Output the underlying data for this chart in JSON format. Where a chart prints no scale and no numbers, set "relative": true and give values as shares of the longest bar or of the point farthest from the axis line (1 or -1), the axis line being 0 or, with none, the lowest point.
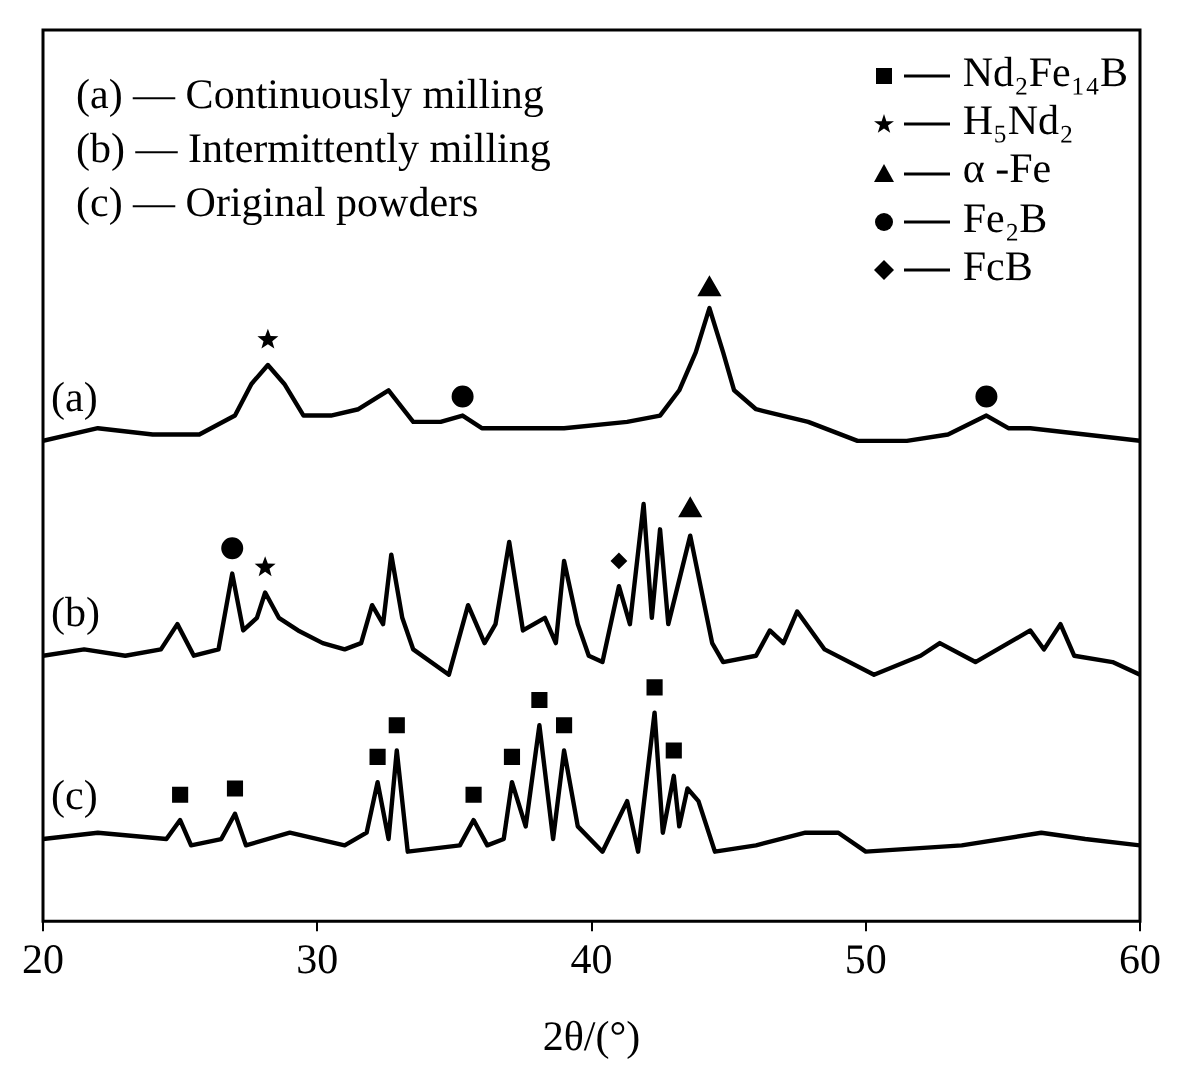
{
  "chart_data": {
    "type": "line",
    "xlabel": "2θ/(°)",
    "relative": true,
    "legend": "top right",
    "xlim": [
      20,
      60
    ],
    "xticks": [
      20,
      30,
      40,
      50,
      60
    ],
    "annotations": [
      "(a) — Continuously milling",
      "(b) — Intermittently milling",
      "(c) — Original powders"
    ],
    "series": [
      {
        "name": "(a)",
        "color": "#000000",
        "marker": "none",
        "x": [
          20,
          22,
          24,
          25.7,
          27,
          27.6,
          28.2,
          28.8,
          29.5,
          30.5,
          31.5,
          32.6,
          33.5,
          34.5,
          35.3,
          36,
          37,
          39,
          41.3,
          42.5,
          43.2,
          43.8,
          44.3,
          44.8,
          45.2,
          46,
          47.9,
          49.7,
          51.5,
          53,
          54.4,
          55.2,
          56,
          58,
          60
        ],
        "values": [
          0.76,
          0.78,
          0.77,
          0.77,
          0.8,
          0.85,
          0.88,
          0.85,
          0.8,
          0.8,
          0.81,
          0.84,
          0.79,
          0.79,
          0.8,
          0.78,
          0.78,
          0.78,
          0.79,
          0.8,
          0.84,
          0.9,
          0.97,
          0.9,
          0.84,
          0.81,
          0.79,
          0.76,
          0.76,
          0.77,
          0.8,
          0.78,
          0.78,
          0.77,
          0.76
        ]
      },
      {
        "name": "(b)",
        "color": "#000000",
        "marker": "none",
        "x": [
          20,
          21.5,
          23,
          24.3,
          24.9,
          25.5,
          26.4,
          26.9,
          27.3,
          27.8,
          28.1,
          28.6,
          29.3,
          30.2,
          31,
          31.6,
          32,
          32.4,
          32.7,
          33.1,
          33.5,
          34.8,
          35.5,
          36.1,
          36.5,
          37,
          37.5,
          38.3,
          38.7,
          39,
          39.5,
          39.9,
          40.4,
          41,
          41.4,
          41.9,
          42.2,
          42.5,
          42.8,
          43.6,
          44.4,
          44.8,
          46,
          46.5,
          47,
          47.5,
          48.5,
          50.3,
          52,
          52.7,
          54,
          56,
          56.5,
          57.1,
          57.6,
          59,
          60
        ],
        "values": [
          0.42,
          0.43,
          0.42,
          0.43,
          0.47,
          0.42,
          0.43,
          0.55,
          0.46,
          0.48,
          0.52,
          0.48,
          0.46,
          0.44,
          0.43,
          0.44,
          0.5,
          0.47,
          0.58,
          0.48,
          0.43,
          0.39,
          0.5,
          0.44,
          0.47,
          0.6,
          0.46,
          0.48,
          0.44,
          0.57,
          0.47,
          0.42,
          0.41,
          0.53,
          0.47,
          0.66,
          0.48,
          0.62,
          0.47,
          0.61,
          0.44,
          0.41,
          0.42,
          0.46,
          0.44,
          0.49,
          0.43,
          0.39,
          0.42,
          0.44,
          0.41,
          0.46,
          0.43,
          0.47,
          0.42,
          0.41,
          0.39
        ]
      },
      {
        "name": "(c)",
        "color": "#000000",
        "marker": "none",
        "x": [
          20,
          22,
          24.5,
          25,
          25.4,
          26.5,
          27,
          27.4,
          29,
          31,
          31.8,
          32.2,
          32.6,
          32.9,
          33.3,
          35.2,
          35.7,
          36.2,
          36.8,
          37.1,
          37.6,
          38.1,
          38.6,
          39,
          39.5,
          40.4,
          41.3,
          41.7,
          42.3,
          42.6,
          43,
          43.2,
          43.5,
          43.9,
          44.5,
          46,
          47.8,
          49,
          50,
          53.5,
          56.4,
          58,
          60
        ],
        "values": [
          0.13,
          0.14,
          0.13,
          0.16,
          0.12,
          0.13,
          0.17,
          0.12,
          0.14,
          0.12,
          0.14,
          0.22,
          0.13,
          0.27,
          0.11,
          0.12,
          0.16,
          0.12,
          0.13,
          0.22,
          0.15,
          0.31,
          0.13,
          0.27,
          0.15,
          0.11,
          0.19,
          0.11,
          0.33,
          0.14,
          0.23,
          0.15,
          0.21,
          0.19,
          0.11,
          0.12,
          0.14,
          0.14,
          0.11,
          0.12,
          0.14,
          0.13,
          0.12
        ]
      },
      {
        "name": "Nd₂Fe₁₄B",
        "type": "scatter",
        "color": "#000000",
        "marker": "square",
        "x": [
          25,
          27,
          32.2,
          32.9,
          35.7,
          37.1,
          38.1,
          39,
          42.3,
          43
        ],
        "values": [
          0.2,
          0.21,
          0.26,
          0.31,
          0.2,
          0.26,
          0.35,
          0.31,
          0.37,
          0.27
        ]
      },
      {
        "name": "H₅Nd₂",
        "type": "scatter",
        "color": "#000000",
        "marker": "star",
        "x": [
          28.2,
          28.1
        ],
        "values": [
          0.92,
          0.56
        ]
      },
      {
        "name": "α -Fe",
        "type": "scatter",
        "color": "#000000",
        "marker": "triangle",
        "x": [
          44.3,
          43.6
        ],
        "values": [
          1.0,
          0.65
        ]
      },
      {
        "name": "Fe₂B",
        "type": "scatter",
        "color": "#000000",
        "marker": "circle",
        "x": [
          35.3,
          54.4,
          26.9
        ],
        "values": [
          0.83,
          0.83,
          0.59
        ]
      },
      {
        "name": "FcB",
        "type": "scatter",
        "color": "#000000",
        "marker": "diamond",
        "x": [
          41.0
        ],
        "values": [
          0.57
        ]
      }
    ]
  }
}
